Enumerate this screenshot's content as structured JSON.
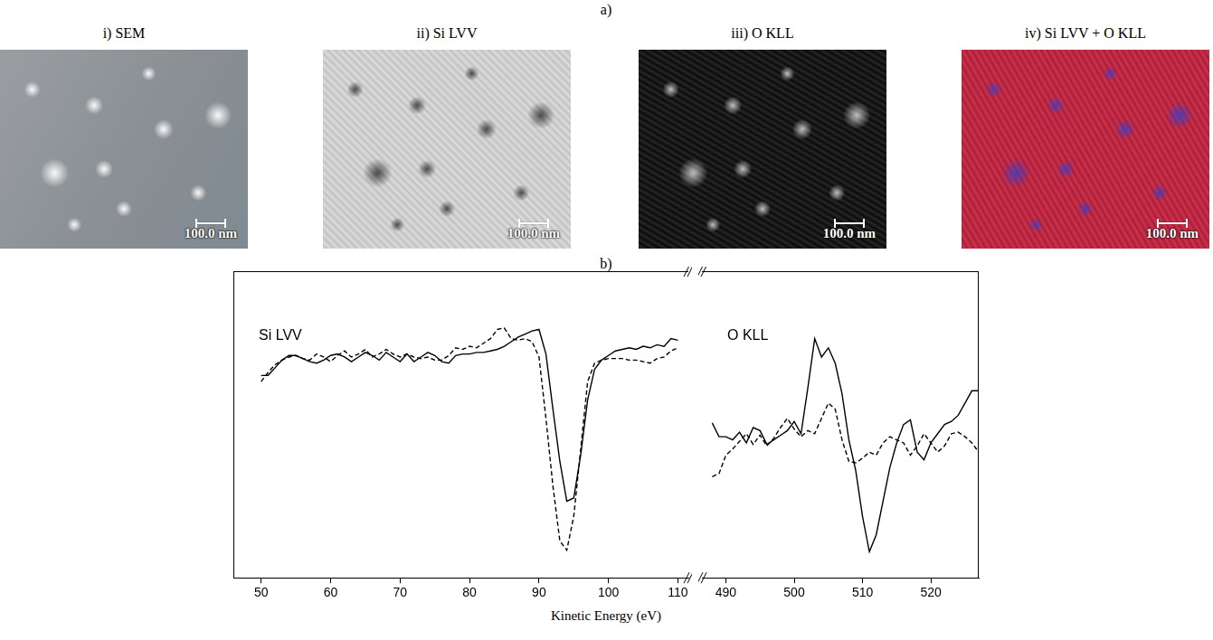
{
  "images": {
    "label": "a)",
    "panels": [
      {
        "title": "i) SEM",
        "scale_bar": "100.0 nm"
      },
      {
        "title": "ii) Si LVV",
        "scale_bar": "100.0 nm"
      },
      {
        "title": "iii) O KLL",
        "scale_bar": "100.0 nm"
      },
      {
        "title": "iv) Si LVV + O KLL",
        "scale_bar": "100.0 nm"
      }
    ]
  },
  "spectra": {
    "label": "b)",
    "x_label": "Kinetic Energy (eV)"
  },
  "chart_data": [
    {
      "type": "line",
      "title": "Si LVV",
      "x": [
        50,
        51,
        52,
        53,
        54,
        55,
        56,
        57,
        58,
        59,
        60,
        61,
        62,
        63,
        64,
        65,
        66,
        67,
        68,
        69,
        70,
        71,
        72,
        73,
        74,
        75,
        76,
        77,
        78,
        79,
        80,
        81,
        82,
        83,
        84,
        85,
        86,
        87,
        88,
        89,
        90,
        91,
        92,
        93,
        94,
        95,
        96,
        97,
        98,
        99,
        100,
        101,
        102,
        103,
        104,
        105,
        106,
        107,
        108,
        109,
        110
      ],
      "xlim": [
        46,
        111.5
      ],
      "xticks": [
        50,
        60,
        70,
        80,
        90,
        100,
        110
      ],
      "ylim": [
        0,
        100
      ],
      "tick_labels": "x",
      "grid": false,
      "series": [
        {
          "color": "#000000",
          "line_style": "solid",
          "values": [
            66,
            66,
            68.5,
            71,
            72.5,
            72.5,
            71.5,
            70.5,
            70,
            71,
            72.5,
            73,
            72,
            70.5,
            72,
            73.5,
            72.5,
            71,
            73.5,
            72,
            70.5,
            73,
            70.5,
            72,
            73.5,
            72.5,
            70.5,
            70,
            72.5,
            73,
            73,
            73.5,
            73.5,
            74,
            74.5,
            75.5,
            77,
            78.5,
            79.5,
            80.5,
            81,
            73,
            55,
            38,
            25,
            26,
            40,
            58,
            68,
            71,
            72.5,
            74,
            74.5,
            75,
            74.5,
            75.5,
            75,
            76,
            75.5,
            78,
            77.5
          ]
        },
        {
          "color": "#000000",
          "line_style": "dashed",
          "values": [
            64,
            67,
            69.5,
            71,
            72,
            72.5,
            71.5,
            71,
            73,
            72,
            70.5,
            72.5,
            74,
            72,
            73,
            74.5,
            72,
            73,
            74.5,
            73,
            72,
            73,
            72,
            71.5,
            72,
            71,
            71,
            72.5,
            75,
            74.5,
            75.5,
            75,
            76.5,
            78,
            81,
            81.5,
            78,
            77.5,
            78,
            77,
            72,
            52,
            30,
            12,
            9,
            20,
            42,
            64,
            70,
            71,
            71.5,
            71.5,
            71.5,
            71,
            71,
            70.5,
            70,
            71.5,
            72,
            74,
            75
          ]
        }
      ]
    },
    {
      "type": "line",
      "title": "O KLL",
      "x": [
        488,
        489,
        490,
        491,
        492,
        493,
        494,
        495,
        496,
        497,
        498,
        499,
        500,
        501,
        502,
        503,
        504,
        505,
        506,
        507,
        508,
        509,
        510,
        511,
        512,
        513,
        514,
        515,
        516,
        517,
        518,
        519,
        520,
        521,
        522,
        523,
        524,
        525,
        526,
        527
      ],
      "xlim": [
        486.5,
        527
      ],
      "xticks": [
        490,
        500,
        510,
        520
      ],
      "ylim": [
        0,
        100
      ],
      "tick_labels": "x",
      "grid": false,
      "series": [
        {
          "color": "#000000",
          "line_style": "solid",
          "values": [
            50.5,
            46,
            46,
            45,
            47.5,
            44,
            49,
            48,
            43.5,
            45,
            46.5,
            48,
            51,
            47,
            62,
            78,
            72,
            75,
            70,
            60,
            45,
            35,
            20,
            8.5,
            14,
            25,
            36,
            44,
            50,
            51.5,
            41,
            38.5,
            44,
            47,
            50,
            51,
            53,
            57,
            61,
            61
          ]
        },
        {
          "color": "#000000",
          "line_style": "dashed",
          "values": [
            33,
            34,
            40,
            42,
            44.5,
            47,
            43.5,
            46.5,
            43,
            45.5,
            49,
            52,
            48.5,
            46,
            48,
            47,
            52,
            57,
            55,
            45,
            38,
            37.5,
            39,
            41,
            40,
            44,
            46,
            45,
            44,
            40,
            43,
            47,
            44,
            41,
            43,
            47,
            47.5,
            46,
            44,
            41
          ]
        }
      ]
    }
  ]
}
